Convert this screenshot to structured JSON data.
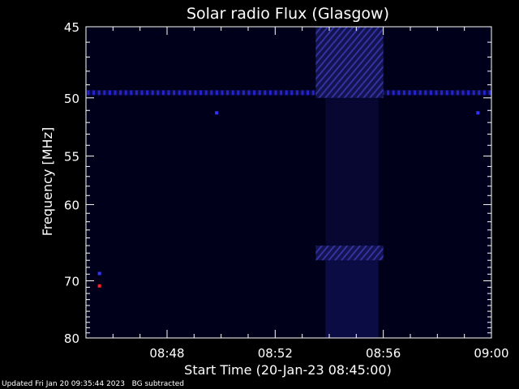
{
  "chart_data": {
    "type": "heatmap",
    "title": "Solar radio Flux (Glasgow)",
    "xlabel": "Start Time (20-Jan-23 08:45:00)",
    "ylabel": "Frequency [MHz]",
    "x_unit": "minutes",
    "xlim": [
      "08:45",
      "09:00"
    ],
    "x_ticks": [
      {
        "label": "08:48",
        "minute": 3
      },
      {
        "label": "08:52",
        "minute": 7
      },
      {
        "label": "08:56",
        "minute": 11
      },
      {
        "label": "09:00",
        "minute": 15
      }
    ],
    "ylim": [
      45,
      80
    ],
    "y_scale": "reciprocal",
    "y_ticks": [
      45,
      50,
      55,
      60,
      70,
      80
    ],
    "background_color": "#00001a",
    "features": [
      {
        "type": "band",
        "freq": 49.6,
        "t_start": "08:45",
        "t_end": "09:00",
        "intensity": "high",
        "color": "#2323c8"
      },
      {
        "type": "burst",
        "t_start": "08:53:30",
        "t_end": "08:56:00",
        "freq_range": [
          45,
          50
        ],
        "intensity": "medium",
        "color": "#1c1c7a"
      },
      {
        "type": "burst",
        "t_start": "08:53:30",
        "t_end": "08:56:00",
        "freq_range": [
          65,
          67
        ],
        "intensity": "medium",
        "color": "#1c1c7a"
      },
      {
        "type": "point",
        "time": "08:45:30",
        "freq": 68.9,
        "color": "#3333ff"
      },
      {
        "type": "point",
        "time": "08:45:30",
        "freq": 70.8,
        "color": "#ff2020"
      },
      {
        "type": "point",
        "time": "08:49:50",
        "freq": 51.2,
        "color": "#3333ff"
      },
      {
        "type": "point",
        "time": "08:59:30",
        "freq": 51.2,
        "color": "#3333ff"
      }
    ]
  },
  "footer": {
    "updated": "Updated Fri Jan 20 09:35:44 2023",
    "note": "BG subtracted"
  }
}
